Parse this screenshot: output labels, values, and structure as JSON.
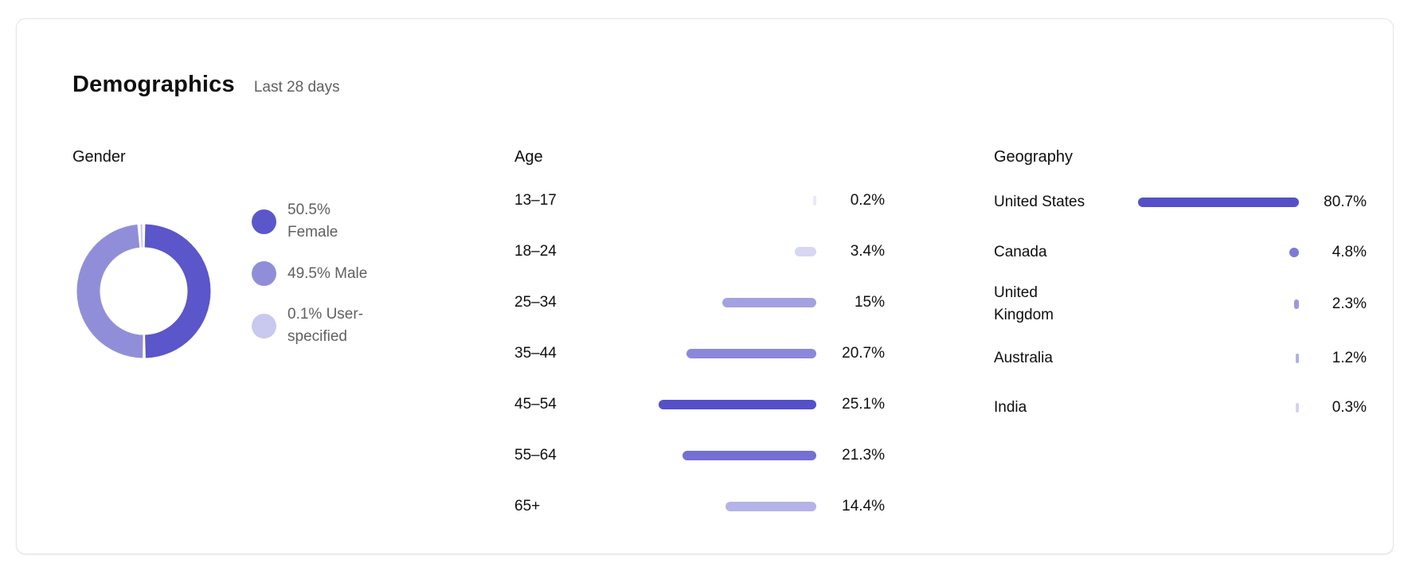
{
  "card": {
    "title": "Demographics",
    "period": "Last 28 days"
  },
  "gender": {
    "section_title": "Gender",
    "legend": [
      {
        "label": "50.5% Female",
        "color": "#5b56ca"
      },
      {
        "label": "49.5% Male",
        "color": "#918ed9"
      },
      {
        "label": "0.1% User-specified",
        "color": "#c9c8ee"
      }
    ]
  },
  "age": {
    "section_title": "Age",
    "max_value": 25.1,
    "rows": [
      {
        "label": "13–17",
        "value": 0.2,
        "display": "0.2%",
        "color": "#e9e8f8"
      },
      {
        "label": "18–24",
        "value": 3.4,
        "display": "3.4%",
        "color": "#d7d6f3"
      },
      {
        "label": "25–34",
        "value": 15,
        "display": "15%",
        "color": "#a4a1e1"
      },
      {
        "label": "35–44",
        "value": 20.7,
        "display": "20.7%",
        "color": "#8b88d9"
      },
      {
        "label": "45–54",
        "value": 25.1,
        "display": "25.1%",
        "color": "#5550c8"
      },
      {
        "label": "55–64",
        "value": 21.3,
        "display": "21.3%",
        "color": "#7470d2"
      },
      {
        "label": "65+",
        "value": 14.4,
        "display": "14.4%",
        "color": "#b5b3e8"
      }
    ]
  },
  "geography": {
    "section_title": "Geography",
    "max_value": 80.7,
    "rows": [
      {
        "label": "United States",
        "value": 80.7,
        "display": "80.7%",
        "color": "#5550c8"
      },
      {
        "label": "Canada",
        "value": 4.8,
        "display": "4.8%",
        "color": "#7d79d7"
      },
      {
        "label": "United Kingdom",
        "value": 2.3,
        "display": "2.3%",
        "color": "#9b98dd"
      },
      {
        "label": "Australia",
        "value": 1.2,
        "display": "1.2%",
        "color": "#b2afe5"
      },
      {
        "label": "India",
        "value": 0.3,
        "display": "0.3%",
        "color": "#d3d2f0"
      }
    ]
  },
  "chart_data": [
    {
      "type": "pie",
      "title": "Gender",
      "subtitle": "Last 28 days",
      "donut": true,
      "labels": [
        "Female",
        "Male",
        "User-specified"
      ],
      "values": [
        50.5,
        49.5,
        0.1
      ],
      "colors": [
        "#5b56ca",
        "#918ed9",
        "#c9c8ee"
      ],
      "legend_position": "right",
      "unit": "%"
    },
    {
      "type": "bar",
      "title": "Age",
      "subtitle": "Last 28 days",
      "orientation": "horizontal",
      "categories": [
        "13–17",
        "18–24",
        "25–34",
        "35–44",
        "45–54",
        "55–64",
        "65+"
      ],
      "values": [
        0.2,
        3.4,
        15,
        20.7,
        25.1,
        21.3,
        14.4
      ],
      "value_labels": [
        "0.2%",
        "3.4%",
        "15%",
        "20.7%",
        "25.1%",
        "21.3%",
        "14.4%"
      ],
      "bar_colors": [
        "#e9e8f8",
        "#d7d6f3",
        "#a4a1e1",
        "#8b88d9",
        "#5550c8",
        "#7470d2",
        "#b5b3e8"
      ],
      "xlim": [
        0,
        25.1
      ],
      "unit": "%",
      "grid": false,
      "bars_right_aligned": true
    },
    {
      "type": "bar",
      "title": "Geography",
      "subtitle": "Last 28 days",
      "orientation": "horizontal",
      "categories": [
        "United States",
        "Canada",
        "United Kingdom",
        "Australia",
        "India"
      ],
      "values": [
        80.7,
        4.8,
        2.3,
        1.2,
        0.3
      ],
      "value_labels": [
        "80.7%",
        "4.8%",
        "2.3%",
        "1.2%",
        "0.3%"
      ],
      "bar_colors": [
        "#5550c8",
        "#7d79d7",
        "#9b98dd",
        "#b2afe5",
        "#d3d2f0"
      ],
      "xlim": [
        0,
        80.7
      ],
      "unit": "%",
      "grid": false,
      "bars_right_aligned": true
    }
  ]
}
